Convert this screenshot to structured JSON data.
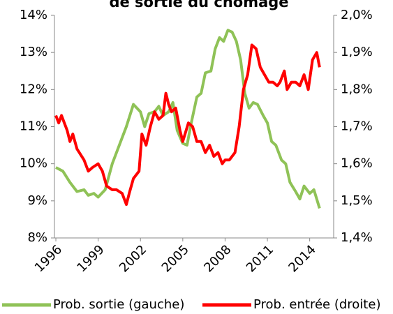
{
  "chart_data": {
    "type": "line",
    "title": "de sortie du chômage",
    "xlim": [
      1995.9,
      2015.7
    ],
    "xticks": [
      1996,
      1999,
      2002,
      2005,
      2008,
      2011,
      2014
    ],
    "ylim": [
      8,
      14
    ],
    "yticks": [
      {
        "value": 8,
        "label": "8%"
      },
      {
        "value": 9,
        "label": "9%"
      },
      {
        "value": 10,
        "label": "10%"
      },
      {
        "value": 11,
        "label": "11%"
      },
      {
        "value": 12,
        "label": "12%"
      },
      {
        "value": 13,
        "label": "13%"
      },
      {
        "value": 14,
        "label": "14%"
      }
    ],
    "y2lim": [
      1.4,
      2.0
    ],
    "y2ticks": [
      {
        "value": 1.4,
        "label": "1,4%"
      },
      {
        "value": 1.5,
        "label": "1,5%"
      },
      {
        "value": 1.6,
        "label": "1,6%"
      },
      {
        "value": 1.7,
        "label": "1,7%"
      },
      {
        "value": 1.8,
        "label": "1,8%"
      },
      {
        "value": 1.9,
        "label": "1,9%"
      },
      {
        "value": 2.0,
        "label": "2,0%"
      }
    ],
    "grid": false,
    "series": [
      {
        "name": "Prob. sortie (gauche)",
        "color": "#8fc257",
        "x": [
          1996.0,
          1996.5,
          1997.0,
          1997.5,
          1998.0,
          1998.3,
          1998.7,
          1999.0,
          1999.5,
          2000.0,
          2000.5,
          2001.0,
          2001.5,
          2002.0,
          2002.3,
          2002.6,
          2003.0,
          2003.3,
          2003.6,
          2004.0,
          2004.3,
          2004.6,
          2005.0,
          2005.3,
          2005.6,
          2006.0,
          2006.3,
          2006.6,
          2007.0,
          2007.3,
          2007.6,
          2007.9,
          2008.2,
          2008.5,
          2008.8,
          2009.1,
          2009.4,
          2009.7,
          2010.0,
          2010.3,
          2010.7,
          2011.0,
          2011.3,
          2011.6,
          2012.0,
          2012.3,
          2012.6,
          2013.0,
          2013.3,
          2013.6,
          2014.0,
          2014.3,
          2014.7
        ],
        "values": [
          9.9,
          9.8,
          9.5,
          9.25,
          9.3,
          9.15,
          9.2,
          9.1,
          9.3,
          10.0,
          10.5,
          11.0,
          11.6,
          11.4,
          11.0,
          11.35,
          11.4,
          11.55,
          11.3,
          11.4,
          11.65,
          10.9,
          10.55,
          10.5,
          11.1,
          11.8,
          11.9,
          12.45,
          12.5,
          13.1,
          13.4,
          13.3,
          13.6,
          13.55,
          13.3,
          12.8,
          11.9,
          11.5,
          11.65,
          11.6,
          11.3,
          11.1,
          10.6,
          10.5,
          10.1,
          10.0,
          9.5,
          9.25,
          9.05,
          9.4,
          9.2,
          9.3,
          8.8
        ]
      },
      {
        "name": "Prob. entrée (droite)",
        "color": "#ff0000",
        "axis": "y2",
        "x": [
          1996.0,
          1996.2,
          1996.4,
          1996.8,
          1997.0,
          1997.2,
          1997.5,
          1998.0,
          1998.3,
          1998.6,
          1999.0,
          1999.3,
          1999.6,
          2000.0,
          2000.3,
          2000.7,
          2001.0,
          2001.2,
          2001.5,
          2001.9,
          2002.1,
          2002.4,
          2002.7,
          2003.0,
          2003.3,
          2003.6,
          2003.8,
          2004.0,
          2004.2,
          2004.5,
          2004.8,
          2005.0,
          2005.4,
          2005.7,
          2006.0,
          2006.3,
          2006.6,
          2006.9,
          2007.2,
          2007.5,
          2007.8,
          2008.0,
          2008.3,
          2008.7,
          2009.0,
          2009.3,
          2009.6,
          2009.9,
          2010.2,
          2010.5,
          2010.8,
          2011.1,
          2011.4,
          2011.7,
          2011.9,
          2012.2,
          2012.4,
          2012.7,
          2013.0,
          2013.3,
          2013.6,
          2013.9,
          2014.2,
          2014.5,
          2014.7
        ],
        "values": [
          1.73,
          1.71,
          1.73,
          1.69,
          1.66,
          1.68,
          1.64,
          1.61,
          1.58,
          1.59,
          1.6,
          1.58,
          1.54,
          1.53,
          1.53,
          1.52,
          1.49,
          1.52,
          1.56,
          1.58,
          1.68,
          1.65,
          1.7,
          1.74,
          1.72,
          1.73,
          1.79,
          1.76,
          1.74,
          1.75,
          1.69,
          1.66,
          1.71,
          1.7,
          1.66,
          1.66,
          1.63,
          1.65,
          1.62,
          1.63,
          1.6,
          1.61,
          1.61,
          1.63,
          1.7,
          1.8,
          1.84,
          1.92,
          1.91,
          1.86,
          1.84,
          1.82,
          1.82,
          1.81,
          1.82,
          1.85,
          1.8,
          1.82,
          1.82,
          1.81,
          1.84,
          1.8,
          1.88,
          1.9,
          1.86
        ]
      }
    ]
  }
}
